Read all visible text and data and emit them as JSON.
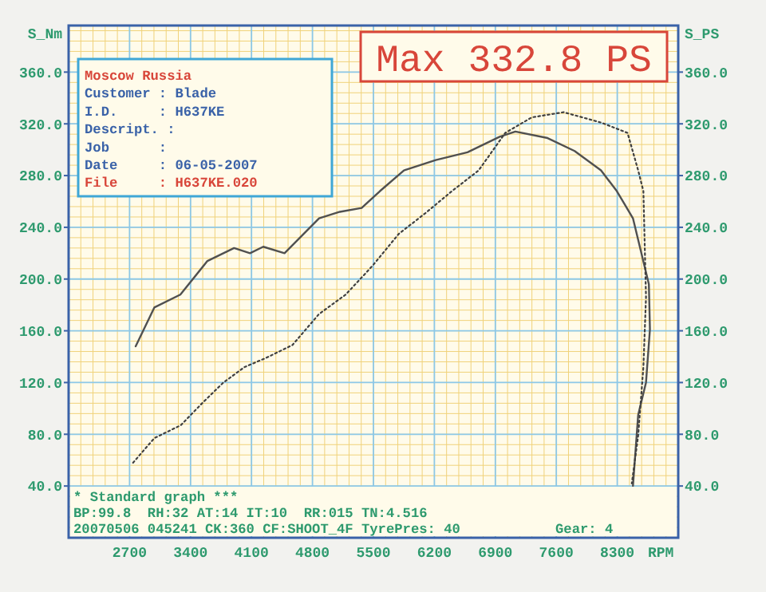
{
  "chart_data": {
    "type": "line",
    "xlabel": "RPM",
    "ylabel": "S_Nm",
    "y2label": "S_PS",
    "xlim": [
      2000,
      9000
    ],
    "xticks": [
      2700,
      3400,
      4100,
      4800,
      5500,
      6200,
      6900,
      7600,
      8300
    ],
    "ylim": [
      0,
      396
    ],
    "yticks": [
      {
        "value": 40,
        "label": "40.0"
      },
      {
        "value": 80,
        "label": "80.0"
      },
      {
        "value": 120,
        "label": "120.0"
      },
      {
        "value": 160,
        "label": "160.0"
      },
      {
        "value": 200,
        "label": "200.0"
      },
      {
        "value": 240,
        "label": "240.0"
      },
      {
        "value": 280,
        "label": "280.0"
      },
      {
        "value": 320,
        "label": "320.0"
      },
      {
        "value": 360,
        "label": "360.0"
      }
    ],
    "y2lim": [
      0,
      396
    ],
    "y2ticks": [
      {
        "value": 40,
        "label": "40.0"
      },
      {
        "value": 80,
        "label": "80.0"
      },
      {
        "value": 120,
        "label": "120.0"
      },
      {
        "value": 160,
        "label": "160.0"
      },
      {
        "value": 200,
        "label": "200.0"
      },
      {
        "value": 240,
        "label": "240.0"
      },
      {
        "value": 280,
        "label": "280.0"
      },
      {
        "value": 320,
        "label": "320.0"
      },
      {
        "value": 360,
        "label": "360.0"
      }
    ],
    "grid": true,
    "series": [
      {
        "color": "#505050",
        "line_style": "solid",
        "x": [
          2770,
          2984,
          3283,
          3594,
          3900,
          4083,
          4235,
          4479,
          4876,
          5115,
          5365,
          5575,
          5850,
          6215,
          6580,
          6950,
          7130,
          7500,
          7810,
          8113,
          8295,
          8480,
          8663,
          8675,
          8630,
          8540,
          8480
        ],
        "values": [
          148,
          178,
          188,
          214,
          224,
          220,
          225,
          220,
          247,
          252,
          255,
          268,
          284,
          292,
          298,
          310,
          314,
          309,
          299,
          284,
          268,
          247,
          196,
          161,
          120,
          95,
          40
        ]
      },
      {
        "color": "#404040",
        "line_style": "dotted",
        "x": [
          2740,
          2984,
          3288,
          3533,
          3777,
          4021,
          4266,
          4570,
          4876,
          5182,
          5486,
          5792,
          6098,
          6402,
          6708,
          7014,
          7318,
          7684,
          8113,
          8418,
          8540,
          8600,
          8630,
          8600,
          8540,
          8467
        ],
        "values": [
          58,
          77,
          87,
          104,
          120,
          132,
          139,
          149,
          173,
          188,
          210,
          235,
          251,
          268,
          284,
          313,
          325,
          329,
          321,
          313,
          284,
          268,
          186,
          132,
          79,
          42
        ]
      }
    ],
    "annotations": [
      "Max 332.8 PS",
      "Moscow Russia",
      "Customer : Blade",
      "I.D.     : H637KE",
      "Descript. :",
      "Job      :",
      "Date     : 06-05-2007",
      "File     : H637KE.020",
      "* Standard graph ***",
      "BP:99.8  RH:32 AT:14 IT:10  RR:015 TN:4.516",
      "20070506 045241 CK:360 CF:SHOOT_4F TyrePres: 40",
      "Gear: 4"
    ]
  }
}
